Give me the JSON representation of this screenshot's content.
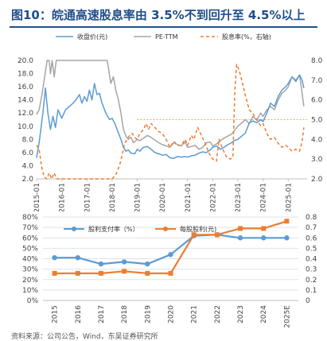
{
  "header": {
    "title": "图10：皖通高速股息率由 3.5%不到回升至 4.5%以上"
  },
  "chart_data": [
    {
      "type": "line",
      "legend": {
        "position": "top",
        "entries": [
          "收盘价(元)",
          "PE-TTM",
          "股息率(%，右轴)"
        ]
      },
      "x_tick_labels": [
        "2015-01",
        "2016-01",
        "2017-01",
        "2018-01",
        "2019-01",
        "2020-01",
        "2021-01",
        "2022-01",
        "2023-01",
        "2024-01",
        "2025-01"
      ],
      "x_range": [
        2015.0,
        2025.75
      ],
      "y_left": {
        "range": [
          2.0,
          20.0
        ],
        "ticks": [
          "2.0",
          "4.0",
          "6.0",
          "8.0",
          "10.0",
          "12.0",
          "14.0",
          "16.0",
          "18.0",
          "20.0"
        ]
      },
      "y_right": {
        "range": [
          2.0,
          8.0
        ],
        "ticks": [
          "2.0",
          "3.0",
          "4.0",
          "5.0",
          "6.0",
          "7.0",
          "8.0"
        ]
      },
      "reference_line": {
        "axis": "right",
        "value": 5.0,
        "color": "#e6c200"
      },
      "series": [
        {
          "name": "收盘价(元)",
          "axis": "left",
          "color": "#5b9bd5",
          "style": "solid",
          "points": [
            [
              2015.0,
              5.2
            ],
            [
              2015.1,
              7.5
            ],
            [
              2015.25,
              12.0
            ],
            [
              2015.35,
              15.8
            ],
            [
              2015.45,
              12.0
            ],
            [
              2015.55,
              9.5
            ],
            [
              2015.65,
              11.5
            ],
            [
              2015.75,
              9.8
            ],
            [
              2015.85,
              12.5
            ],
            [
              2016.0,
              11.2
            ],
            [
              2016.15,
              12.5
            ],
            [
              2016.3,
              13.0
            ],
            [
              2016.45,
              13.5
            ],
            [
              2016.6,
              14.2
            ],
            [
              2016.7,
              14.8
            ],
            [
              2016.8,
              13.5
            ],
            [
              2016.9,
              14.5
            ],
            [
              2017.0,
              13.8
            ],
            [
              2017.1,
              15.5
            ],
            [
              2017.2,
              14.0
            ],
            [
              2017.3,
              16.5
            ],
            [
              2017.4,
              14.8
            ],
            [
              2017.5,
              15.0
            ],
            [
              2017.6,
              13.5
            ],
            [
              2017.75,
              12.0
            ],
            [
              2017.9,
              11.0
            ],
            [
              2018.0,
              11.2
            ],
            [
              2018.1,
              10.5
            ],
            [
              2018.2,
              9.5
            ],
            [
              2018.35,
              8.0
            ],
            [
              2018.45,
              6.8
            ],
            [
              2018.55,
              6.2
            ],
            [
              2018.65,
              6.4
            ],
            [
              2018.75,
              5.9
            ],
            [
              2018.9,
              5.8
            ],
            [
              2019.0,
              6.5
            ],
            [
              2019.1,
              6.2
            ],
            [
              2019.25,
              6.8
            ],
            [
              2019.4,
              6.9
            ],
            [
              2019.55,
              6.5
            ],
            [
              2019.7,
              6.0
            ],
            [
              2019.85,
              5.8
            ],
            [
              2020.0,
              5.6
            ],
            [
              2020.15,
              5.7
            ],
            [
              2020.3,
              5.2
            ],
            [
              2020.45,
              5.1
            ],
            [
              2020.6,
              5.4
            ],
            [
              2020.75,
              5.3
            ],
            [
              2020.9,
              5.4
            ],
            [
              2021.0,
              5.3
            ],
            [
              2021.15,
              5.5
            ],
            [
              2021.3,
              5.6
            ],
            [
              2021.45,
              5.9
            ],
            [
              2021.6,
              6.1
            ],
            [
              2021.75,
              6.0
            ],
            [
              2021.9,
              6.4
            ],
            [
              2022.0,
              6.8
            ],
            [
              2022.15,
              7.0
            ],
            [
              2022.3,
              6.5
            ],
            [
              2022.45,
              6.8
            ],
            [
              2022.6,
              7.2
            ],
            [
              2022.75,
              7.5
            ],
            [
              2022.85,
              7.8
            ],
            [
              2023.0,
              8.0
            ],
            [
              2023.15,
              8.5
            ],
            [
              2023.3,
              9.0
            ],
            [
              2023.45,
              10.5
            ],
            [
              2023.6,
              10.8
            ],
            [
              2023.75,
              10.5
            ],
            [
              2023.9,
              11.0
            ],
            [
              2024.0,
              10.7
            ],
            [
              2024.15,
              12.0
            ],
            [
              2024.3,
              13.5
            ],
            [
              2024.45,
              13.0
            ],
            [
              2024.6,
              14.5
            ],
            [
              2024.75,
              15.5
            ],
            [
              2024.9,
              16.0
            ],
            [
              2025.0,
              16.5
            ],
            [
              2025.15,
              17.5
            ],
            [
              2025.3,
              16.8
            ],
            [
              2025.45,
              17.8
            ],
            [
              2025.55,
              17.0
            ],
            [
              2025.62,
              15.8
            ]
          ]
        },
        {
          "name": "PE-TTM",
          "axis": "left",
          "color": "#a5a5a5",
          "style": "solid",
          "points": [
            [
              2015.0,
              11.8
            ],
            [
              2015.1,
              12.5
            ],
            [
              2015.2,
              14.5
            ],
            [
              2015.3,
              17.0
            ],
            [
              2015.38,
              19.0
            ],
            [
              2015.42,
              20.0
            ],
            [
              2015.5,
              20.0
            ],
            [
              2015.55,
              18.0
            ],
            [
              2015.62,
              20.0
            ],
            [
              2015.7,
              17.5
            ],
            [
              2015.78,
              20.0
            ],
            [
              2015.85,
              20.0
            ],
            [
              2016.0,
              20.0
            ],
            [
              2016.5,
              20.0
            ],
            [
              2017.0,
              20.0
            ],
            [
              2017.5,
              20.0
            ],
            [
              2017.8,
              20.0
            ],
            [
              2017.85,
              19.0
            ],
            [
              2017.95,
              16.5
            ],
            [
              2018.05,
              17.5
            ],
            [
              2018.15,
              15.5
            ],
            [
              2018.25,
              14.0
            ],
            [
              2018.35,
              12.0
            ],
            [
              2018.45,
              9.5
            ],
            [
              2018.55,
              8.5
            ],
            [
              2018.65,
              8.0
            ],
            [
              2018.75,
              8.3
            ],
            [
              2018.85,
              7.5
            ],
            [
              2019.0,
              8.0
            ],
            [
              2019.1,
              7.8
            ],
            [
              2019.25,
              8.2
            ],
            [
              2019.4,
              8.6
            ],
            [
              2019.55,
              8.3
            ],
            [
              2019.7,
              7.9
            ],
            [
              2019.85,
              7.5
            ],
            [
              2020.0,
              7.2
            ],
            [
              2020.15,
              7.0
            ],
            [
              2020.3,
              6.8
            ],
            [
              2020.45,
              7.5
            ],
            [
              2020.6,
              7.2
            ],
            [
              2020.75,
              7.0
            ],
            [
              2020.9,
              7.6
            ],
            [
              2021.0,
              6.8
            ],
            [
              2021.15,
              6.9
            ],
            [
              2021.3,
              7.1
            ],
            [
              2021.45,
              6.5
            ],
            [
              2021.6,
              6.8
            ],
            [
              2021.75,
              7.5
            ],
            [
              2021.9,
              7.6
            ],
            [
              2022.0,
              7.0
            ],
            [
              2022.15,
              7.3
            ],
            [
              2022.3,
              7.8
            ],
            [
              2022.45,
              8.2
            ],
            [
              2022.6,
              8.5
            ],
            [
              2022.75,
              8.8
            ],
            [
              2022.85,
              9.3
            ],
            [
              2023.0,
              10.0
            ],
            [
              2023.15,
              10.5
            ],
            [
              2023.3,
              11.0
            ],
            [
              2023.45,
              10.4
            ],
            [
              2023.6,
              11.5
            ],
            [
              2023.75,
              10.9
            ],
            [
              2023.9,
              12.0
            ],
            [
              2024.0,
              11.5
            ],
            [
              2024.15,
              12.5
            ],
            [
              2024.3,
              13.0
            ],
            [
              2024.45,
              12.5
            ],
            [
              2024.6,
              14.0
            ],
            [
              2024.75,
              15.0
            ],
            [
              2024.9,
              15.5
            ],
            [
              2025.0,
              16.0
            ],
            [
              2025.15,
              17.5
            ],
            [
              2025.3,
              17.0
            ],
            [
              2025.45,
              17.8
            ],
            [
              2025.55,
              15.0
            ],
            [
              2025.62,
              13.0
            ]
          ]
        },
        {
          "name": "股息率(%，右轴)",
          "axis": "right",
          "color": "#ed7d31",
          "style": "dashed",
          "points": [
            [
              2015.0,
              3.7
            ],
            [
              2015.1,
              3.5
            ],
            [
              2015.2,
              2.6
            ],
            [
              2015.3,
              2.1
            ],
            [
              2015.4,
              2.0
            ],
            [
              2015.5,
              2.3
            ],
            [
              2015.6,
              2.0
            ],
            [
              2015.7,
              2.3
            ],
            [
              2015.8,
              2.0
            ],
            [
              2018.0,
              2.0
            ],
            [
              2018.15,
              2.2
            ],
            [
              2018.3,
              2.7
            ],
            [
              2018.4,
              3.2
            ],
            [
              2018.5,
              3.8
            ],
            [
              2018.6,
              4.0
            ],
            [
              2018.7,
              4.2
            ],
            [
              2018.8,
              4.3
            ],
            [
              2018.9,
              4.1
            ],
            [
              2019.0,
              4.0
            ],
            [
              2019.1,
              4.3
            ],
            [
              2019.25,
              4.5
            ],
            [
              2019.35,
              4.8
            ],
            [
              2019.45,
              4.5
            ],
            [
              2019.55,
              4.8
            ],
            [
              2019.7,
              4.6
            ],
            [
              2019.85,
              4.4
            ],
            [
              2020.0,
              4.3
            ],
            [
              2020.15,
              4.0
            ],
            [
              2020.3,
              3.6
            ],
            [
              2020.45,
              3.9
            ],
            [
              2020.6,
              3.7
            ],
            [
              2020.75,
              3.7
            ],
            [
              2020.9,
              4.0
            ],
            [
              2021.0,
              3.7
            ],
            [
              2021.15,
              4.2
            ],
            [
              2021.25,
              4.0
            ],
            [
              2021.4,
              4.6
            ],
            [
              2021.55,
              4.2
            ],
            [
              2021.7,
              3.8
            ],
            [
              2021.85,
              3.3
            ],
            [
              2022.0,
              3.0
            ],
            [
              2022.15,
              2.9
            ],
            [
              2022.25,
              4.0
            ],
            [
              2022.4,
              3.5
            ],
            [
              2022.55,
              3.1
            ],
            [
              2022.7,
              3.0
            ],
            [
              2022.8,
              3.1
            ],
            [
              2022.88,
              6.5
            ],
            [
              2022.95,
              7.8
            ],
            [
              2023.05,
              7.5
            ],
            [
              2023.15,
              7.0
            ],
            [
              2023.3,
              6.2
            ],
            [
              2023.45,
              5.5
            ],
            [
              2023.6,
              5.3
            ],
            [
              2023.75,
              5.0
            ],
            [
              2023.9,
              4.7
            ],
            [
              2024.0,
              4.8
            ],
            [
              2024.15,
              4.3
            ],
            [
              2024.3,
              4.0
            ],
            [
              2024.45,
              4.1
            ],
            [
              2024.6,
              3.8
            ],
            [
              2024.75,
              3.6
            ],
            [
              2024.9,
              3.7
            ],
            [
              2025.0,
              3.6
            ],
            [
              2025.15,
              3.4
            ],
            [
              2025.3,
              3.5
            ],
            [
              2025.45,
              3.4
            ],
            [
              2025.55,
              3.9
            ],
            [
              2025.62,
              4.6
            ]
          ]
        }
      ]
    },
    {
      "type": "line",
      "legend": {
        "position": "top",
        "entries": [
          "股利支付率（%）",
          "每股股利(元)"
        ]
      },
      "categories": [
        "2015",
        "2016",
        "2017",
        "2018",
        "2019",
        "2020",
        "2021",
        "2022",
        "2023",
        "2024",
        "2025E"
      ],
      "y_left": {
        "range": [
          0,
          80
        ],
        "ticks": [
          "0%",
          "10%",
          "20%",
          "30%",
          "40%",
          "50%",
          "60%",
          "70%",
          "80%"
        ]
      },
      "y_right": {
        "range": [
          0,
          0.8
        ],
        "ticks": [
          "0",
          "0.1",
          "0.2",
          "0.3",
          "0.4",
          "0.5",
          "0.6",
          "0.7",
          "0.8"
        ]
      },
      "series": [
        {
          "name": "股利支付率（%）",
          "axis": "left",
          "color": "#5b9bd5",
          "values": [
            41,
            41,
            35,
            37,
            35,
            44,
            62,
            63,
            60,
            60,
            60
          ]
        },
        {
          "name": "每股股利(元)",
          "axis": "right",
          "color": "#ed7d31",
          "values": [
            0.26,
            0.26,
            0.26,
            0.28,
            0.26,
            0.26,
            0.63,
            0.63,
            0.69,
            0.69,
            0.76
          ]
        }
      ]
    }
  ],
  "footer": {
    "source": "资料来源：公司公告，Wind，东吴证券研究所"
  }
}
